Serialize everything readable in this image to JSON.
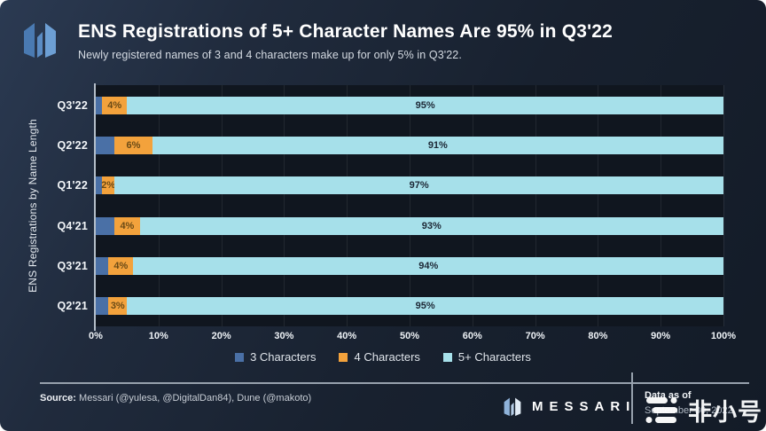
{
  "header": {
    "title": "ENS Registrations of 5+ Character Names Are 95% in Q3'22",
    "subtitle": "Newly registered names of 3 and 4 characters make up for only 5% in Q3'22."
  },
  "chart_data": {
    "type": "bar",
    "orientation": "horizontal",
    "stacked": true,
    "percent_stacked": true,
    "categories": [
      "Q3'22",
      "Q2'22",
      "Q1'22",
      "Q4'21",
      "Q3'21",
      "Q2'21"
    ],
    "series": [
      {
        "name": "3 Characters",
        "color": "#4a70a6",
        "values": [
          1,
          3,
          1,
          3,
          2,
          2
        ],
        "labels": [
          "",
          "",
          "",
          "",
          "",
          ""
        ]
      },
      {
        "name": "4 Characters",
        "color": "#f3a23c",
        "values": [
          4,
          6,
          2,
          4,
          4,
          3
        ],
        "labels": [
          "4%",
          "6%",
          "2%",
          "4%",
          "4%",
          "3%"
        ]
      },
      {
        "name": "5+ Characters",
        "color": "#a6e0ea",
        "values": [
          95,
          91,
          97,
          93,
          94,
          95
        ],
        "labels": [
          "95%",
          "91%",
          "97%",
          "93%",
          "94%",
          "95%"
        ]
      }
    ],
    "ylabel": "ENS Registrations by Name Length",
    "xlabel": "",
    "xlim": [
      0,
      100
    ],
    "x_ticks": [
      "0%",
      "10%",
      "20%",
      "30%",
      "40%",
      "50%",
      "60%",
      "70%",
      "80%",
      "90%",
      "100%"
    ],
    "grid": true,
    "legend_position": "bottom"
  },
  "footer": {
    "source_label": "Source:",
    "source_text": " Messari (@yulesa, @DigitalDan84), Dune (@makoto)",
    "brand": "MESSARI",
    "data_as_of_label": "Data as of",
    "data_as_of_value": "September 30, 2022"
  },
  "watermark": {
    "text": "非小号"
  }
}
